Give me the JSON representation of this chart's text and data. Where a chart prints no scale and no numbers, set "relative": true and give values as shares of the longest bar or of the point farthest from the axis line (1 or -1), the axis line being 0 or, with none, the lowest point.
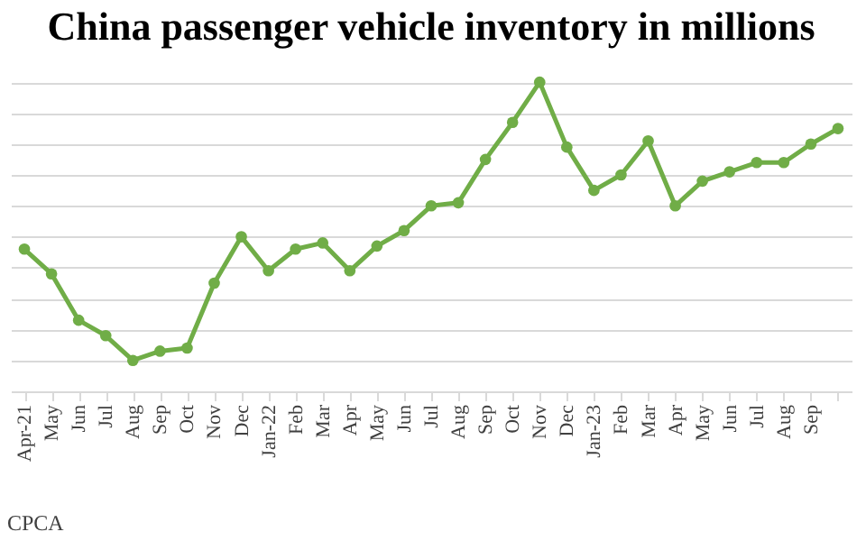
{
  "chart_data": {
    "type": "line",
    "title": "China passenger vehicle inventory in millions",
    "relative": true,
    "categories": [
      "Apr-21",
      "May",
      "Jun",
      "Jul",
      "Aug",
      "Sep",
      "Oct",
      "Nov",
      "Dec",
      "Jan-22",
      "Feb",
      "Mar",
      "Apr",
      "May",
      "Jun",
      "Jul",
      "Aug",
      "Sep",
      "Oct",
      "Nov",
      "Dec",
      "Jan-23",
      "Feb",
      "Mar",
      "Apr",
      "May",
      "Jun",
      "Jul",
      "Aug",
      "Sep",
      null
    ],
    "series": [
      {
        "color": "#70ad47",
        "values": [
          0.46,
          0.38,
          0.23,
          0.18,
          0.1,
          0.13,
          0.14,
          0.35,
          0.5,
          0.39,
          0.46,
          0.48,
          0.39,
          0.47,
          0.52,
          0.6,
          0.61,
          0.75,
          0.87,
          1,
          0.79,
          0.65,
          0.7,
          0.81,
          0.6,
          0.68,
          0.71,
          0.74,
          0.74,
          0.8,
          0.85
        ]
      }
    ],
    "grid": true,
    "marker": "circle",
    "annotations": [
      "CPCA"
    ]
  }
}
